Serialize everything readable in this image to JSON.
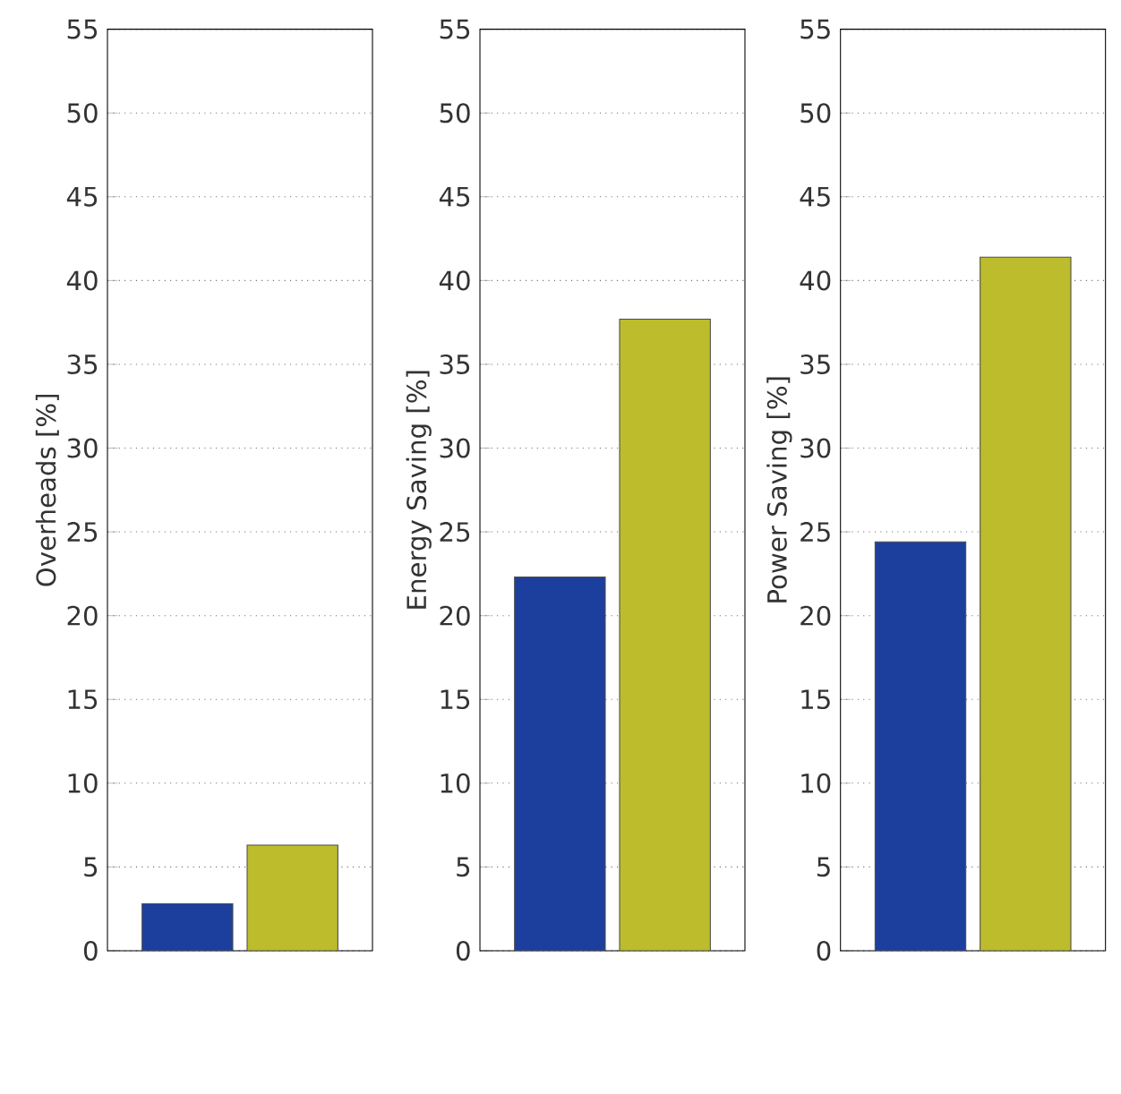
{
  "chart_data": [
    {
      "type": "bar",
      "ylabel": "Overheads [%]",
      "categories": [
        null
      ],
      "series": [
        {
          "color": "#1c3f9e",
          "values": [
            2.8
          ]
        },
        {
          "color": "#bcbc2c",
          "values": [
            6.3
          ]
        }
      ],
      "ylim": [
        0,
        55
      ],
      "yticks": [
        0,
        5,
        10,
        15,
        20,
        25,
        30,
        35,
        40,
        45,
        50,
        55
      ],
      "grid": "y"
    },
    {
      "type": "bar",
      "ylabel": "Energy Saving [%]",
      "categories": [
        null
      ],
      "series": [
        {
          "color": "#1c3f9e",
          "values": [
            22.3
          ]
        },
        {
          "color": "#bcbc2c",
          "values": [
            37.7
          ]
        }
      ],
      "ylim": [
        0,
        55
      ],
      "yticks": [
        0,
        5,
        10,
        15,
        20,
        25,
        30,
        35,
        40,
        45,
        50,
        55
      ],
      "grid": "y"
    },
    {
      "type": "bar",
      "ylabel": "Power Saving [%]",
      "categories": [
        null
      ],
      "series": [
        {
          "color": "#1c3f9e",
          "values": [
            24.4
          ]
        },
        {
          "color": "#bcbc2c",
          "values": [
            41.4
          ]
        }
      ],
      "ylim": [
        0,
        55
      ],
      "yticks": [
        0,
        5,
        10,
        15,
        20,
        25,
        30,
        35,
        40,
        45,
        50,
        55
      ],
      "grid": "y"
    }
  ]
}
